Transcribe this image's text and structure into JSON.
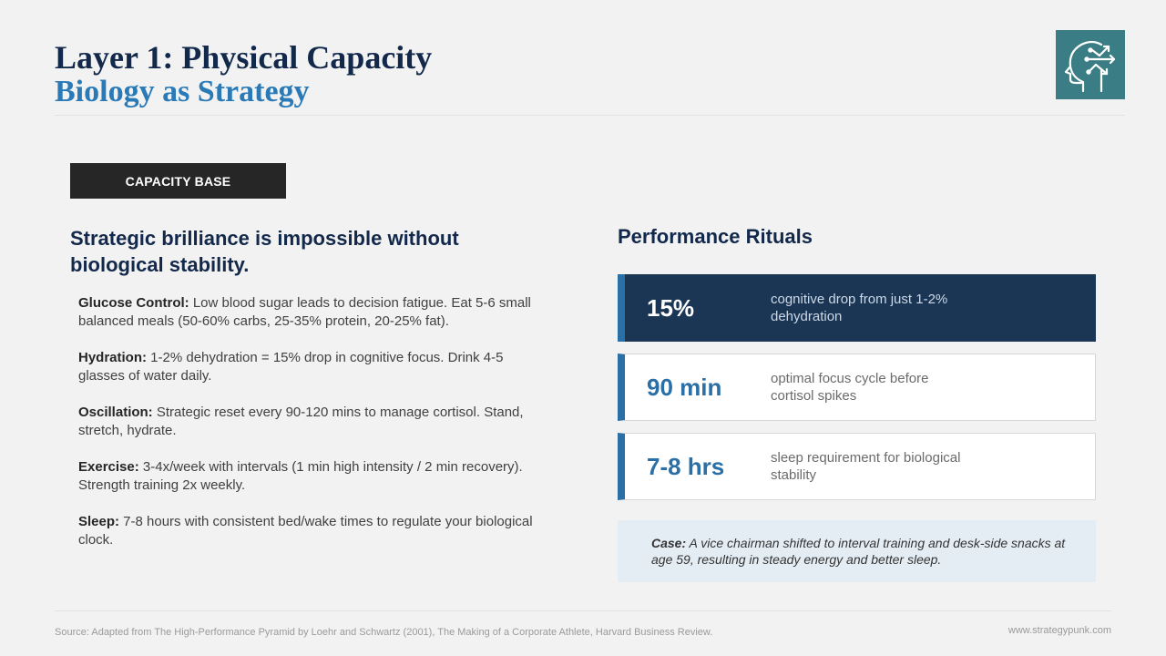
{
  "header": {
    "title": "Layer 1: Physical Capacity",
    "subtitle": "Biology as Strategy",
    "logo_icon": "head-profile-arrows-icon",
    "logo_color": "#3b7d84"
  },
  "left": {
    "badge": "CAPACITY BASE",
    "lead": "Strategic brilliance is impossible without biological stability.",
    "points": [
      {
        "label": "Glucose Control:",
        "text": " Low blood sugar leads to decision fatigue. Eat 5-6 small balanced meals (50-60% carbs, 25-35% protein, 20-25% fat)."
      },
      {
        "label": "Hydration:",
        "text": " 1-2% dehydration = 15% drop in cognitive focus. Drink 4-5 glasses of water daily."
      },
      {
        "label": "Oscillation:",
        "text": " Strategic reset every 90-120 mins to manage cortisol. Stand, stretch, hydrate."
      },
      {
        "label": "Exercise:",
        "text": " 3-4x/week with intervals (1 min high intensity / 2 min recovery). Strength training 2x weekly."
      },
      {
        "label": "Sleep:",
        "text": " 7-8 hours with consistent bed/wake times to regulate your biological clock."
      }
    ]
  },
  "right": {
    "title": "Performance Rituals",
    "stats": [
      {
        "value": "15%",
        "desc": "cognitive drop from just 1-2% dehydration"
      },
      {
        "value": "90 min",
        "desc": "optimal focus cycle before cortisol spikes"
      },
      {
        "value": "7-8 hrs",
        "desc": "sleep requirement for biological stability"
      }
    ],
    "case_label": "Case:",
    "case_text": " A vice chairman shifted to interval training and desk-side snacks at age 59, resulting in steady energy and better sleep."
  },
  "footer": {
    "source": "Source: Adapted from The High-Performance Pyramid by Loehr and Schwartz (2001), The Making of a Corporate Athlete, Harvard Business Review.",
    "url": "www.strategypunk.com"
  },
  "colors": {
    "navy": "#13294b",
    "accent_blue": "#2a7ab8",
    "stat_blue": "#2a6fa6",
    "dark_card": "#1b3655",
    "case_bg": "#e5edf4"
  }
}
